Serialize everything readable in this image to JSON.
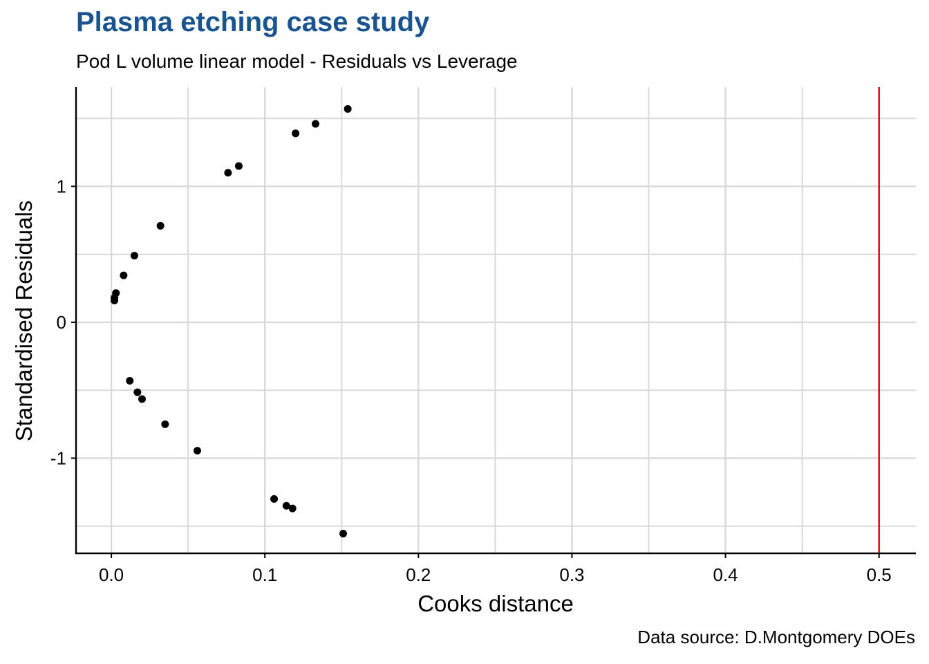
{
  "header": {
    "title": "Plasma etching case study",
    "subtitle": "Pod L volume linear model - Residuals vs Leverage"
  },
  "caption": "Data source: D.Montgomery DOEs",
  "colors": {
    "title": "#1a5490",
    "points": "#000000",
    "reference_line": "#e00000",
    "grid": "#d9d9d9"
  },
  "chart_data": {
    "type": "scatter",
    "title": "Plasma etching case study",
    "subtitle": "Pod L volume linear model - Residuals vs Leverage",
    "xlabel": "Cooks distance",
    "ylabel": "Standardised Residuals",
    "xlim": [
      -0.023,
      0.524
    ],
    "ylim": [
      -1.7,
      1.73
    ],
    "x_ticks": [
      0.0,
      0.1,
      0.2,
      0.3,
      0.4,
      0.5
    ],
    "x_tick_labels": [
      "0.0",
      "0.1",
      "0.2",
      "0.3",
      "0.4",
      "0.5"
    ],
    "y_ticks": [
      -1,
      0,
      1
    ],
    "y_tick_labels": [
      "-1",
      "0",
      "1"
    ],
    "x_minor_ticks": [
      0.05,
      0.15,
      0.25,
      0.35,
      0.45
    ],
    "y_minor_ticks": [
      -1.5,
      -0.5,
      0.5,
      1.5
    ],
    "grid": true,
    "reference_line": {
      "orientation": "vertical",
      "x": 0.5
    },
    "points": [
      {
        "x": 0.154,
        "y": 1.57
      },
      {
        "x": 0.133,
        "y": 1.46
      },
      {
        "x": 0.12,
        "y": 1.39
      },
      {
        "x": 0.083,
        "y": 1.15
      },
      {
        "x": 0.076,
        "y": 1.1
      },
      {
        "x": 0.032,
        "y": 0.71
      },
      {
        "x": 0.015,
        "y": 0.49
      },
      {
        "x": 0.008,
        "y": 0.345
      },
      {
        "x": 0.003,
        "y": 0.215
      },
      {
        "x": 0.002,
        "y": 0.18
      },
      {
        "x": 0.002,
        "y": 0.16
      },
      {
        "x": 0.012,
        "y": -0.43
      },
      {
        "x": 0.017,
        "y": -0.515
      },
      {
        "x": 0.02,
        "y": -0.565
      },
      {
        "x": 0.035,
        "y": -0.75
      },
      {
        "x": 0.056,
        "y": -0.945
      },
      {
        "x": 0.106,
        "y": -1.3
      },
      {
        "x": 0.114,
        "y": -1.35
      },
      {
        "x": 0.118,
        "y": -1.37
      },
      {
        "x": 0.151,
        "y": -1.555
      }
    ]
  }
}
